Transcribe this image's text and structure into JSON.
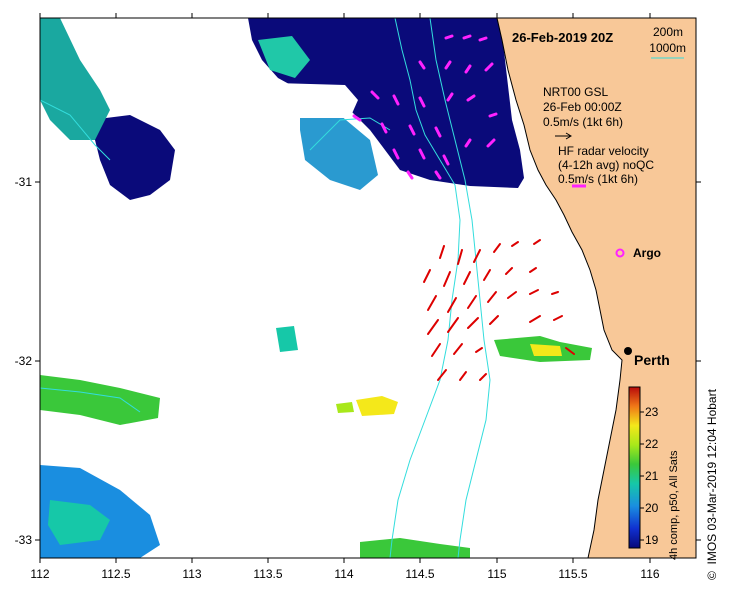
{
  "map": {
    "date_title": "26-Feb-2019 20Z",
    "scale": {
      "depth1": "200m",
      "depth2": "1000m"
    },
    "model_legend": {
      "line1": "NRT00 GSL",
      "line2": "26-Feb 00:00Z",
      "line3": "0.5m/s (1kt 6h)"
    },
    "radar_legend": {
      "line1": "HF radar velocity",
      "line2": "(4-12h avg) noQC",
      "line3": "0.5m/s (1kt 6h)"
    },
    "argo_label": "Argo",
    "city_label": "Perth",
    "credit": "IMOS 03-Mar-2019 12:04 Hobart",
    "copyright_symbol": "©",
    "x_ticks": [
      "112",
      "112.5",
      "113",
      "113.5",
      "114",
      "114.5",
      "115",
      "115.5",
      "116"
    ],
    "y_ticks": [
      "-31",
      "-32",
      "-33"
    ],
    "colorbar": {
      "title": "4h comp, p50, All Sats",
      "ticks": [
        "19",
        "20",
        "21",
        "22",
        "23"
      ],
      "min": 18.7,
      "max": 23.6
    },
    "colors": {
      "land": "#f8c898",
      "cold": "#0a0a7a",
      "radar_arrow": "#ff22ff",
      "model_arrow": "#dd0000",
      "isobath": "#33dddd"
    }
  }
}
